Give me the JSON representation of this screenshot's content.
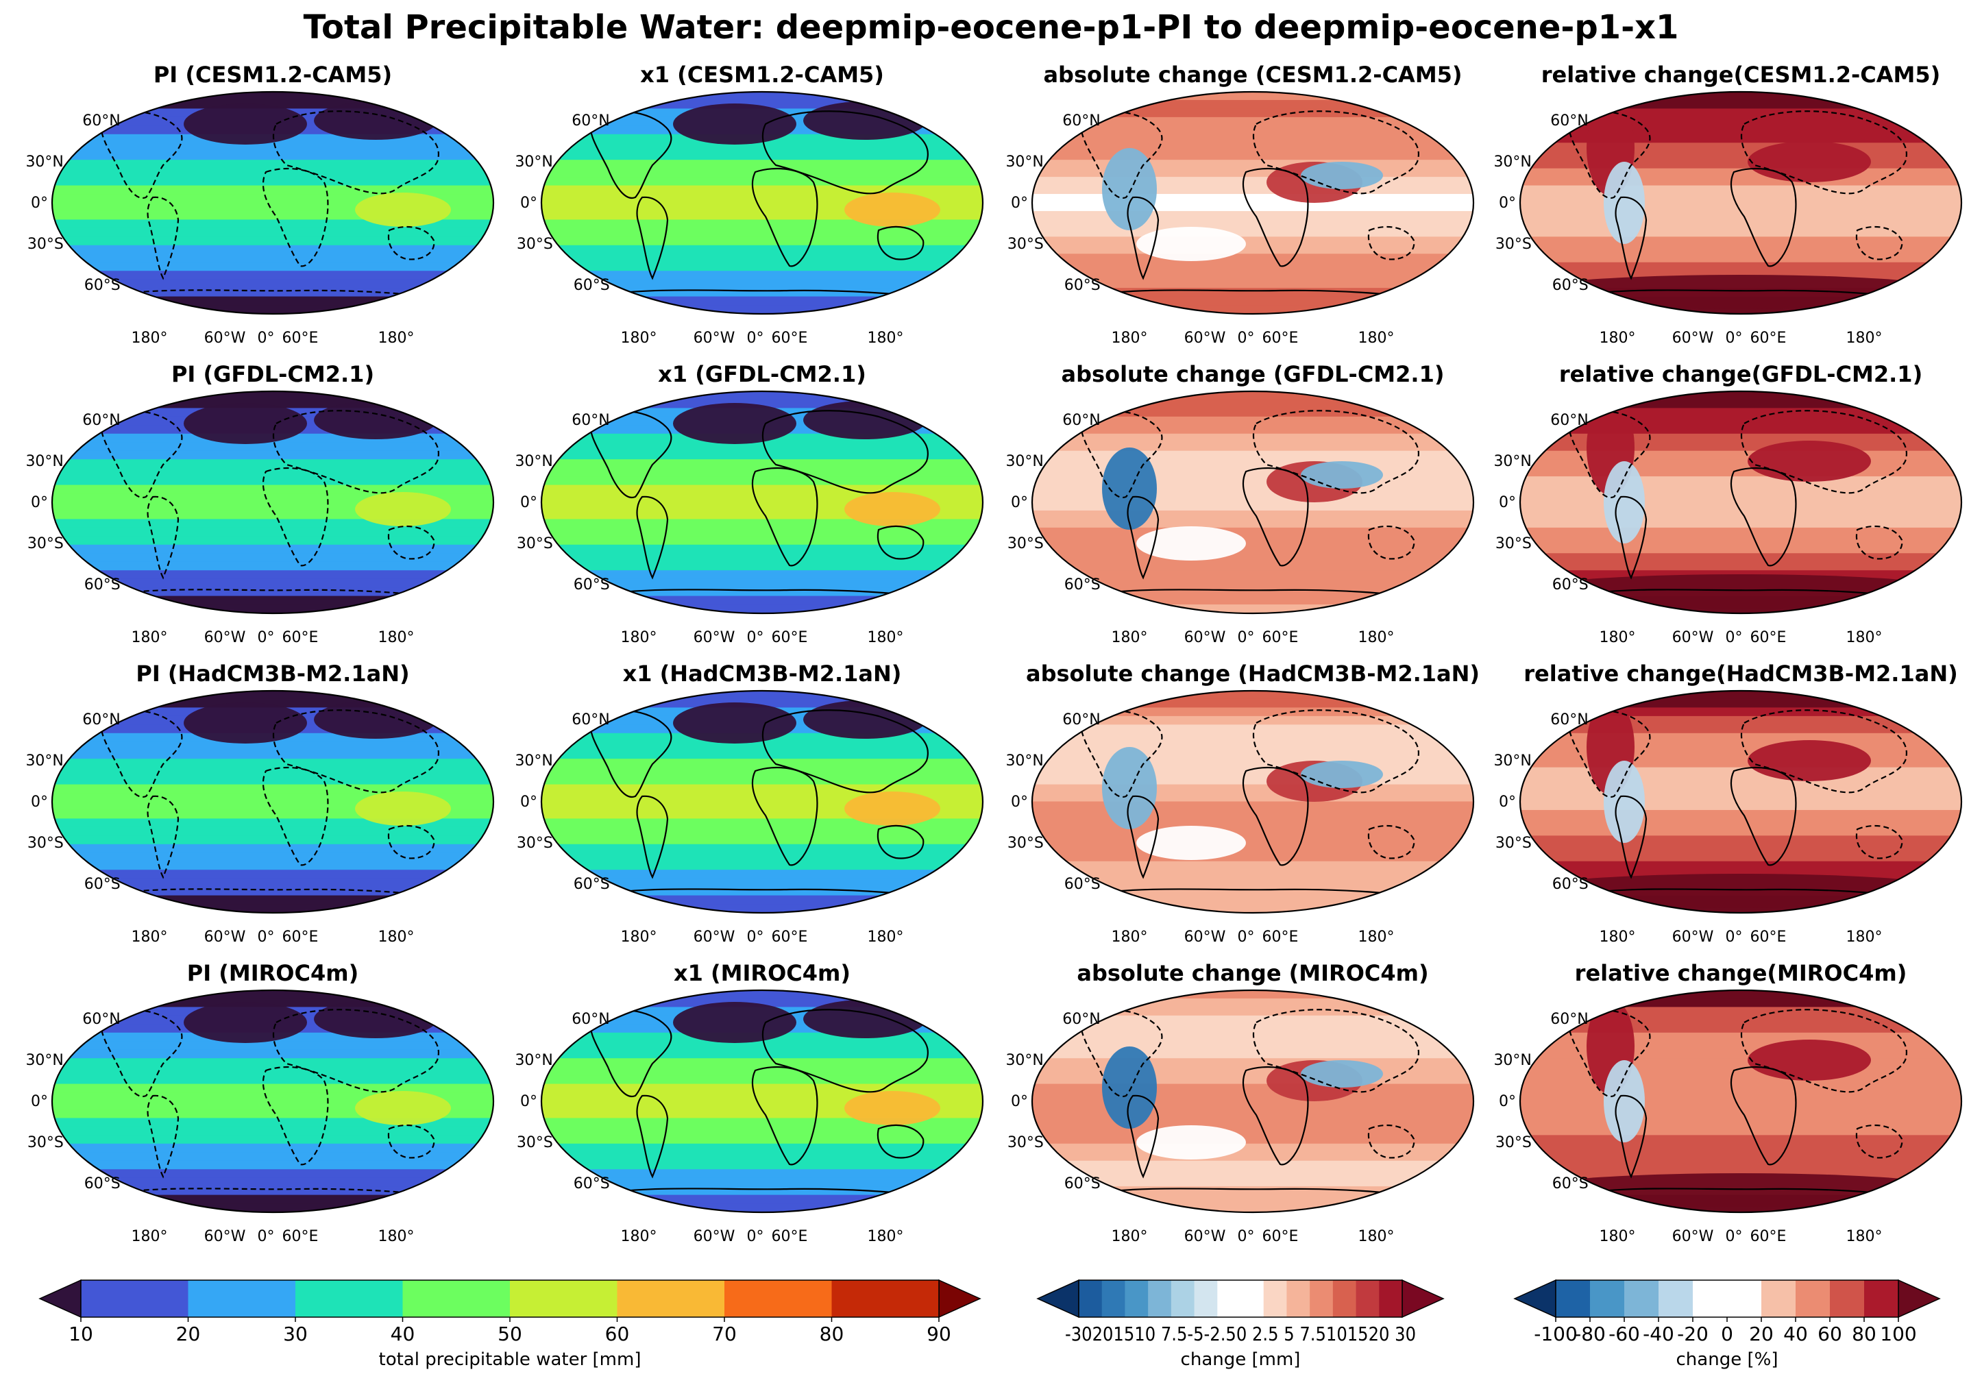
{
  "suptitle": "Total Precipitable Water: deepmip-eocene-p1-PI to deepmip-eocene-p1-x1",
  "rows": [
    {
      "model": "CESM1.2-CAM5",
      "titles": [
        "PI (CESM1.2-CAM5)",
        "x1 (CESM1.2-CAM5)",
        "absolute change (CESM1.2-CAM5)",
        "relative change(CESM1.2-CAM5)"
      ]
    },
    {
      "model": "GFDL-CM2.1",
      "titles": [
        "PI (GFDL-CM2.1)",
        "x1 (GFDL-CM2.1)",
        "absolute change (GFDL-CM2.1)",
        "relative change(GFDL-CM2.1)"
      ]
    },
    {
      "model": "HadCM3B-M2.1aN",
      "titles": [
        "PI (HadCM3B-M2.1aN)",
        "x1 (HadCM3B-M2.1aN)",
        "absolute change (HadCM3B-M2.1aN)",
        "relative change(HadCM3B-M2.1aN)"
      ]
    },
    {
      "model": "MIROC4m",
      "titles": [
        "PI (MIROC4m)",
        "x1 (MIROC4m)",
        "absolute change (MIROC4m)",
        "relative change(MIROC4m)"
      ]
    }
  ],
  "map_ticks": {
    "lat": [
      "60°N",
      "30°N",
      "0°",
      "30°S",
      "60°S"
    ],
    "lon": [
      "180°",
      "60°W",
      "0°",
      "60°E",
      "180°"
    ]
  },
  "colorbars": [
    {
      "id": "tpw",
      "label": "total precipitable water [mm]",
      "ticks": [
        "10",
        "20",
        "30",
        "40",
        "50",
        "60",
        "70",
        "80",
        "90"
      ],
      "colors": [
        "#4357d6",
        "#35a7f5",
        "#1ee3b7",
        "#6cfe5f",
        "#c6ef34",
        "#f9b935",
        "#f76b19",
        "#c52907"
      ],
      "extend_low": "#30123b",
      "extend_high": "#7a0403"
    },
    {
      "id": "abs",
      "label": "change [mm]",
      "ticks": [
        "-30",
        "20",
        "15",
        "10",
        "7.5",
        "5",
        "2.5",
        "0",
        "2.5",
        "5",
        "7.5",
        "10",
        "15",
        "20",
        "30"
      ],
      "tick_text": "-30201510 7.5-5-2.50 2.5 5 7.5101520 30",
      "colors": [
        "#1c5c9e",
        "#2f79b5",
        "#4996c7",
        "#7db5d7",
        "#acd2e5",
        "#d3e5ef",
        "#ffffff",
        "#ffffff",
        "#fad6c4",
        "#f5b49a",
        "#eb8c72",
        "#d8614f",
        "#c13a3e",
        "#a3162a"
      ],
      "extend_low": "#0b3369",
      "extend_high": "#7a0822"
    },
    {
      "id": "rel",
      "label": "change [%]",
      "ticks": [
        "-100",
        "-80",
        "-60",
        "-40",
        "-20",
        "0",
        "20",
        "40",
        "60",
        "80",
        "100"
      ],
      "colors": [
        "#1e63a6",
        "#4996c7",
        "#7db5d7",
        "#bad7ea",
        "#ffffff",
        "#ffffff",
        "#f6c0a8",
        "#eb8c72",
        "#d0544a",
        "#ab1a2c"
      ],
      "extend_low": "#0b3369",
      "extend_high": "#6b0a1e"
    }
  ]
}
